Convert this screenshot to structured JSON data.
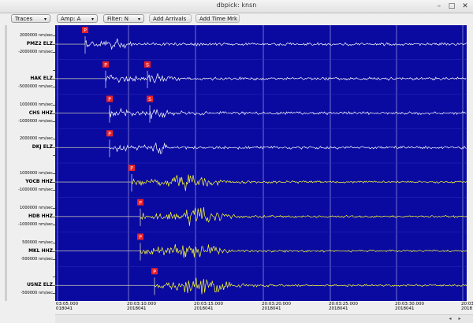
{
  "window": {
    "title": "dbpick: knsn",
    "minimize": "–",
    "maximize": "□",
    "close": "✕"
  },
  "toolbar": {
    "traces_label": "Traces",
    "amp_label": "Amp: A",
    "filter_label": "Filter: N",
    "add_arrivals_label": "Add Arrivals",
    "add_time_mrk_label": "Add Time Mrk",
    "dropdown_arrow": "▾"
  },
  "traces": [
    {
      "name": "PMZ2 ELZ",
      "amp_top": "2000000 nm/sec",
      "amp_bottom": "-2000000 nm/sec",
      "p": "P",
      "s": ""
    },
    {
      "name": "HAK ELZ",
      "amp_top": "",
      "amp_bottom": "-5000000 nm/sec",
      "p": "P",
      "s": "S"
    },
    {
      "name": "CHS HHZ",
      "amp_top": "1000000 nm/sec",
      "amp_bottom": "-1000000 nm/sec",
      "p": "P",
      "s": "S"
    },
    {
      "name": "DKJ ELZ",
      "amp_top": "2000000 nm/sec",
      "amp_bottom": "",
      "p": "P",
      "s": ""
    },
    {
      "name": "YOCB HHZ",
      "amp_top": "1000000 nm/sec",
      "amp_bottom": "-1000000 nm/sec",
      "p": "P",
      "s": ""
    },
    {
      "name": "HDB HHZ",
      "amp_top": "1000000 nm/sec",
      "amp_bottom": "-1000000 nm/sec",
      "p": "P",
      "s": ""
    },
    {
      "name": "MKL HHZ",
      "amp_top": "500000 nm/sec",
      "amp_bottom": "-500000 nm/sec",
      "p": "P",
      "s": ""
    },
    {
      "name": "USNZ ELZ",
      "amp_top": "",
      "amp_bottom": "-500000 nm/sec",
      "p": "P",
      "s": ""
    }
  ],
  "time_ticks": [
    {
      "time": "03:05.000",
      "date": "018041"
    },
    {
      "time": "20:03:10.000",
      "date": "2018041"
    },
    {
      "time": "20:03:15.000",
      "date": "2018041"
    },
    {
      "time": "20:03:20.000",
      "date": "2018041"
    },
    {
      "time": "20:03:25.000",
      "date": "2018041"
    },
    {
      "time": "20:03:30.000",
      "date": "2018041"
    },
    {
      "time": "20:03",
      "date": "2018"
    }
  ],
  "scrollbar": {
    "left": "◂",
    "right": "▸"
  },
  "colors": {
    "plot_bg": "#0a0aa0",
    "trace_white": "#ffffff",
    "trace_yellow": "#ffff33",
    "arrival_marker": "#e8202a"
  }
}
